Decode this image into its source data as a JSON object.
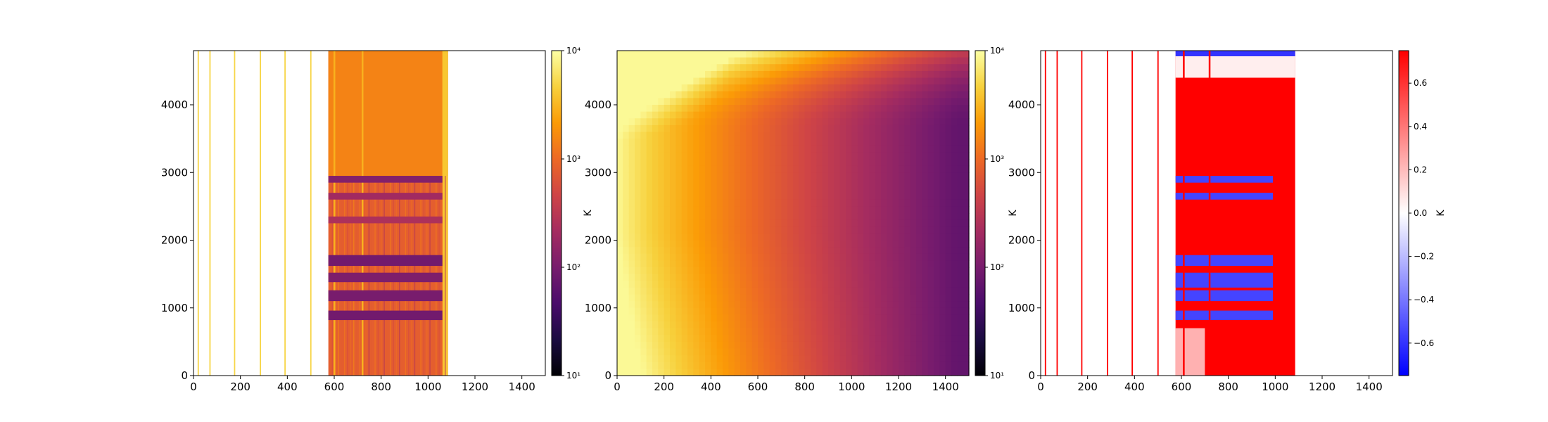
{
  "colors": {
    "inferno_stops": [
      "#000004",
      "#1b0c41",
      "#4a0c6b",
      "#781c6d",
      "#a52c60",
      "#cf4446",
      "#ed6925",
      "#fb9b06",
      "#f7d13d",
      "#fcffa4"
    ],
    "bwr_stops": [
      "#0000ff",
      "#ffffff",
      "#ff0000"
    ],
    "axes": "#000000"
  },
  "chart_data": [
    {
      "type": "heatmap",
      "title": "",
      "xlabel": "",
      "ylabel": "",
      "xlim": [
        0,
        1500
      ],
      "ylim": [
        0,
        4800
      ],
      "x_ticks": [
        "0",
        "200",
        "400",
        "600",
        "800",
        "1000",
        "1200",
        "1400"
      ],
      "y_ticks": [
        "0",
        "1000",
        "2000",
        "3000",
        "4000"
      ],
      "colormap": "inferno",
      "scale": "log",
      "color_range": [
        10,
        10000
      ],
      "colorbar_label": "K",
      "colorbar_ticks": [
        "10¹",
        "10²",
        "10³",
        "10⁴"
      ],
      "description_values": {
        "thin_column_positions": [
          20,
          70,
          175,
          285,
          390,
          500
        ],
        "dense_region_x": [
          575,
          1085
        ],
        "dense_region_level": 800,
        "bands_y": [
          {
            "y": [
              2850,
              2950
            ],
            "level": 120
          },
          {
            "y": [
              2600,
              2700
            ],
            "level": 200
          },
          {
            "y": [
              2250,
              2350
            ],
            "level": 250
          },
          {
            "y": [
              1620,
              1780
            ],
            "level": 90
          },
          {
            "y": [
              1380,
              1520
            ],
            "level": 110
          },
          {
            "y": [
              1100,
              1260
            ],
            "level": 100
          },
          {
            "y": [
              820,
              960
            ],
            "level": 90
          }
        ]
      }
    },
    {
      "type": "heatmap",
      "title": "",
      "xlabel": "",
      "ylabel": "",
      "xlim": [
        0,
        1500
      ],
      "ylim": [
        0,
        4800
      ],
      "x_ticks": [
        "0",
        "200",
        "400",
        "600",
        "800",
        "1000",
        "1200",
        "1400"
      ],
      "y_ticks": [
        "0",
        "1000",
        "2000",
        "3000",
        "4000"
      ],
      "colormap": "inferno",
      "scale": "log",
      "color_range": [
        10,
        10000
      ],
      "colorbar_label": "K",
      "colorbar_ticks": [
        "10¹",
        "10²",
        "10³",
        "10⁴"
      ],
      "description_values": {
        "corner_top_left": 9000,
        "min_center": [
          1450,
          2100
        ],
        "min_value": 70,
        "top_right": 1500,
        "bottom_right": 90
      }
    },
    {
      "type": "heatmap",
      "title": "",
      "xlabel": "",
      "ylabel": "",
      "xlim": [
        0,
        1500
      ],
      "ylim": [
        0,
        4800
      ],
      "x_ticks": [
        "0",
        "200",
        "400",
        "600",
        "800",
        "1000",
        "1200",
        "1400"
      ],
      "y_ticks": [
        "0",
        "1000",
        "2000",
        "3000",
        "4000"
      ],
      "colormap": "bwr",
      "scale": "linear",
      "color_range": [
        -0.75,
        0.75
      ],
      "colorbar_label": "K",
      "colorbar_ticks": [
        "−0.6",
        "−0.4",
        "−0.2",
        "0.0",
        "0.2",
        "0.4",
        "0.6"
      ],
      "colorbar_tick_values": [
        -0.6,
        -0.4,
        -0.2,
        0.0,
        0.2,
        0.4,
        0.6
      ],
      "description_values": {
        "dense_region_x": [
          575,
          1085
        ],
        "dense_region_level": 0.75,
        "thin_column_positions": [
          20,
          70,
          175,
          285,
          390,
          500
        ],
        "blue_bands_y": [
          [
            2850,
            2950
          ],
          [
            2600,
            2700
          ],
          [
            1620,
            1780
          ],
          [
            1300,
            1520
          ],
          [
            1100,
            1260
          ],
          [
            820,
            960
          ]
        ],
        "top_white_region_y": [
          4400,
          4800
        ]
      }
    }
  ]
}
